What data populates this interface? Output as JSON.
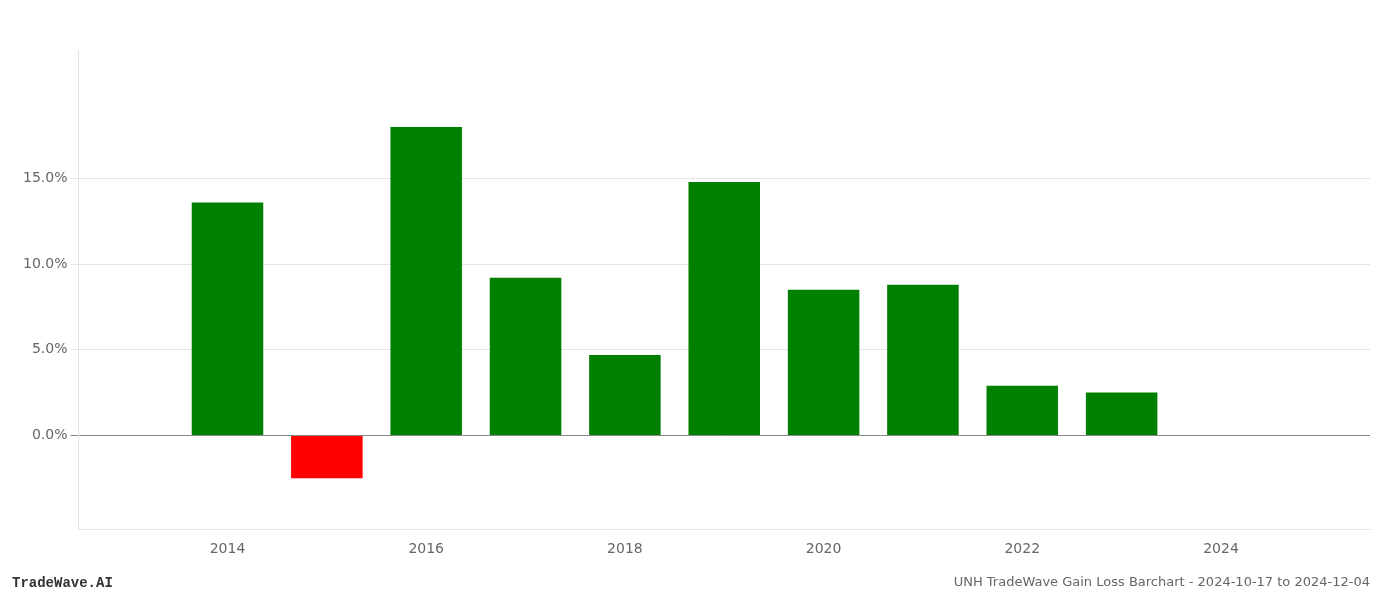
{
  "chart_data": {
    "type": "bar",
    "title": "UNH TradeWave Gain Loss Barchart - 2024-10-17 to 2024-12-04",
    "annotations": [
      "TradeWave.AI"
    ],
    "x": [
      2014,
      2015,
      2016,
      2017,
      2018,
      2019,
      2020,
      2021,
      2022,
      2023
    ],
    "values": [
      0.136,
      -0.025,
      0.18,
      0.092,
      0.047,
      0.148,
      0.085,
      0.088,
      0.029,
      0.025
    ],
    "colors": [
      "#008000",
      "#ff0000",
      "#008000",
      "#008000",
      "#008000",
      "#008000",
      "#008000",
      "#008000",
      "#008000",
      "#008000"
    ],
    "xlim": [
      2012.5,
      2025.5
    ],
    "xticks": [
      2014,
      2016,
      2018,
      2020,
      2022,
      2024
    ],
    "ylim": [
      -0.055,
      0.225
    ],
    "yticks": [
      {
        "value": 0.0,
        "label": "0.0%"
      },
      {
        "value": 0.05,
        "label": "5.0%"
      },
      {
        "value": 0.1,
        "label": "10.0%"
      },
      {
        "value": 0.15,
        "label": "15.0%"
      }
    ],
    "grid": "y"
  }
}
